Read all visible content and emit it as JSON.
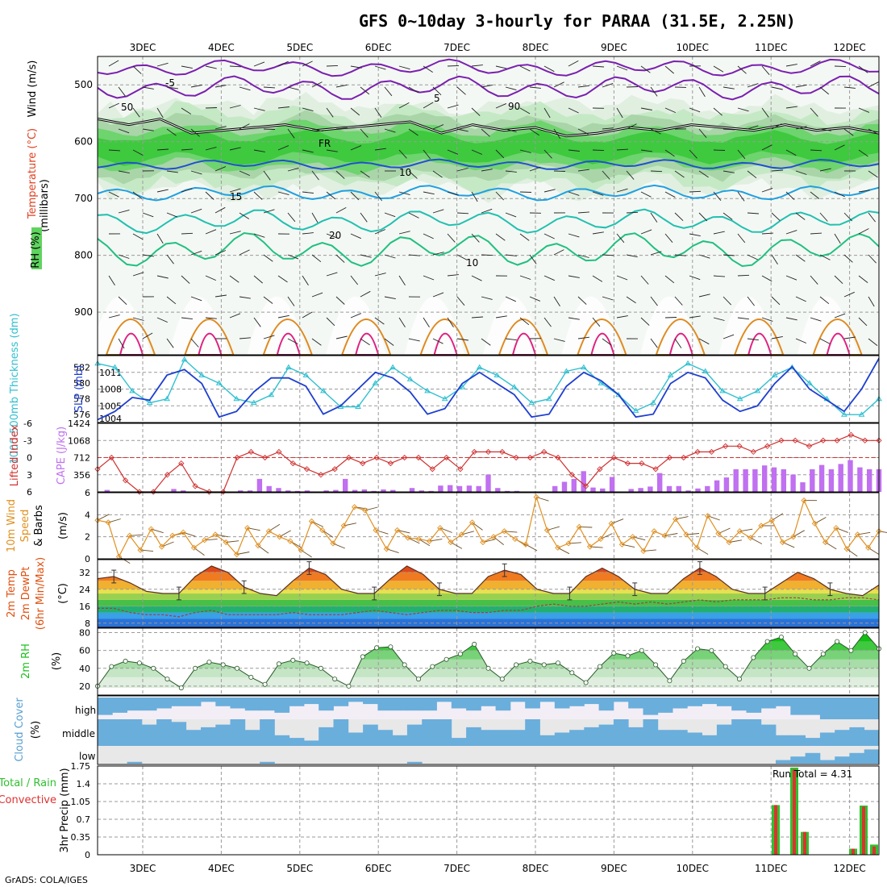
{
  "header": {
    "title": "GFS 0~10day 3-hourly for PARAA (31.5E, 2.25N)",
    "credit": "GrADS: COLA/IGES"
  },
  "colors": {
    "rh_dark": "#1ec21e",
    "rh_mid": "#5fd35f",
    "rh_light": "#bfe8bf",
    "temp_neg": "#7a1fb0",
    "temp_5": "#2050d0",
    "temp_10": "#20a0e0",
    "temp_15": "#20c0b0",
    "temp_20": "#20c080",
    "temp_warm": "#e08a20",
    "slp": "#1e3fd0",
    "thickness": "#30c0d0",
    "cape": "#c070f0",
    "lifted_index": "#d03030",
    "wind10": "#e09020",
    "temp2m": "#e05010",
    "rh2m": "#20c020",
    "cloud": "#6aaedc",
    "precip_total": "#30c030",
    "precip_conv": "#e03030"
  },
  "chart_data": [
    {
      "type": "heatmap",
      "panel": "upper-air",
      "title": "GFS 0~10day 3-hourly for PARAA (31.5E, 2.25N)",
      "xlabel": "",
      "ylabel": "(millibars)",
      "x_ticks": [
        "3DEC",
        "4DEC",
        "5DEC",
        "6DEC",
        "7DEC",
        "8DEC",
        "9DEC",
        "10DEC",
        "11DEC",
        "12DEC"
      ],
      "y_ticks": [
        500,
        600,
        700,
        800,
        900
      ],
      "ylim": [
        1000,
        450
      ],
      "legend": [
        "Wind (m/s)",
        "Temperature (°C)",
        "RH (%)"
      ],
      "contour_labels": [
        "-5",
        "FR",
        "5",
        "10",
        "15",
        "20",
        "10",
        "50",
        "90"
      ],
      "freezing_level_mb": [
        560,
        570,
        560,
        585,
        580,
        575,
        570,
        580,
        575,
        570,
        565,
        585,
        570,
        580,
        575,
        590,
        585,
        575,
        580,
        570,
        575,
        580,
        570,
        580,
        575,
        585
      ]
    },
    {
      "type": "line",
      "panel": "slp-thickness",
      "ylabel_left": "1000-500mb Thickness (dm)",
      "ylabel_right": "SLP (mb)",
      "left_ticks": [
        576,
        578,
        580,
        582
      ],
      "right_ticks": [
        1005,
        1008,
        1011
      ],
      "right_bottom_label": "1004",
      "series": [
        {
          "name": "SLP",
          "values": [
            1002.5,
            1004,
            1006.5,
            1006,
            1010.5,
            1011.5,
            1009,
            1003,
            1004,
            1007.5,
            1010,
            1010,
            1008.5,
            1003.5,
            1005,
            1008,
            1011,
            1010,
            1007.5,
            1003.5,
            1004.5,
            1009,
            1011,
            1009,
            1007,
            1003,
            1003.5,
            1008.5,
            1011,
            1009.5,
            1007,
            1003,
            1003.5,
            1009,
            1011,
            1010,
            1006,
            1004,
            1005,
            1009,
            1012,
            1008,
            1006,
            1004,
            1008,
            1013.5
          ]
        },
        {
          "name": "Thickness",
          "values": [
            582.5,
            582,
            579,
            577.5,
            578,
            583,
            581,
            580,
            578,
            577.5,
            578.5,
            582,
            581,
            579,
            577,
            577,
            580,
            582,
            580.5,
            579,
            578,
            579.5,
            582,
            581,
            579.5,
            577.5,
            578,
            581.5,
            582,
            580,
            578.5,
            576.5,
            577.5,
            581,
            582.5,
            581.5,
            579,
            578,
            579,
            581,
            582,
            580,
            578,
            576,
            576,
            578
          ]
        }
      ]
    },
    {
      "type": "bar",
      "panel": "cape-lifted-index",
      "ylabel_left": "Lifted Index",
      "ylabel_right": "CAPE (J/kg)",
      "left_ticks": [
        6,
        3,
        0,
        -3,
        -6
      ],
      "right_ticks": [
        356,
        712,
        1068,
        1424
      ],
      "series": [
        {
          "name": "CAPE",
          "values": [
            0,
            40,
            0,
            0,
            0,
            0,
            0,
            0,
            60,
            30,
            0,
            0,
            0,
            0,
            0,
            30,
            30,
            270,
            120,
            80,
            30,
            20,
            30,
            0,
            30,
            40,
            270,
            40,
            50,
            20,
            50,
            40,
            0,
            80,
            30,
            20,
            130,
            140,
            120,
            130,
            120,
            360,
            80,
            20,
            20,
            0,
            0,
            0,
            120,
            210,
            270,
            430,
            90,
            70,
            310,
            0,
            60,
            80,
            110,
            390,
            120,
            120,
            30,
            70,
            120,
            240,
            300,
            470,
            470,
            470,
            550,
            510,
            470,
            360,
            200,
            470,
            560,
            470,
            580,
            660,
            510,
            470,
            470
          ]
        },
        {
          "name": "Lifted Index",
          "values": [
            2,
            0,
            4,
            6,
            6,
            3,
            1,
            5,
            6,
            6,
            0,
            -1,
            0,
            -1,
            1,
            2,
            3,
            2,
            0,
            1,
            0,
            1,
            0,
            0,
            2,
            0,
            2,
            -1,
            -1,
            -1,
            0,
            0,
            -1,
            0,
            3,
            5,
            2,
            0,
            1,
            1,
            2,
            0,
            0,
            -1,
            -1,
            -2,
            -2,
            -1,
            -2,
            -3,
            -3,
            -2,
            -3,
            -3,
            -4,
            -3,
            -3
          ]
        }
      ]
    },
    {
      "type": "line",
      "panel": "wind10m",
      "ylabel": "10m Wind Speed & Barbs (m/s)",
      "y_ticks": [
        0,
        2,
        4,
        6
      ],
      "series": [
        {
          "name": "10m Wind Speed",
          "values": [
            3.5,
            3.3,
            0.2,
            2.1,
            0.8,
            2.7,
            1.1,
            2.1,
            2.4,
            1.0,
            1.7,
            2.2,
            1.5,
            0.4,
            2.8,
            1.2,
            2.5,
            2.0,
            1.6,
            0.8,
            3.4,
            2.6,
            1.4,
            3.0,
            4.7,
            4.4,
            2.6,
            0.9,
            2.6,
            1.9,
            1.8,
            1.6,
            2.8,
            1.5,
            2.2,
            3.3,
            1.5,
            2.0,
            2.5,
            1.8,
            1.3,
            5.6,
            2.6,
            1.0,
            1.4,
            2.9,
            1.1,
            1.8,
            3.2,
            1.3,
            2.0,
            0.7,
            2.5,
            2.1,
            3.6,
            2.2,
            1.0,
            3.9,
            2.3,
            1.5,
            2.5,
            1.9,
            3.0,
            3.5,
            1.5,
            2.0,
            5.3,
            3.2,
            1.5,
            2.8,
            0.9,
            2.2,
            1.0,
            2.5
          ]
        }
      ]
    },
    {
      "type": "area",
      "panel": "temp2m",
      "ylabel": "2m Temp 2m DewPt (6hr Min/Max) (°C)",
      "y_ticks": [
        8,
        16,
        24,
        32
      ],
      "series": [
        {
          "name": "2m Temp",
          "values": [
            29,
            30,
            27,
            23,
            22,
            22,
            30,
            35,
            32,
            25,
            22,
            21,
            28,
            34,
            31,
            24,
            22,
            22,
            29,
            35,
            31,
            24,
            22,
            22,
            30,
            33,
            31,
            24,
            22,
            22,
            30,
            34,
            30,
            24,
            22,
            22,
            29,
            34,
            30,
            24,
            22,
            22,
            27,
            32,
            29,
            24,
            22,
            21,
            26
          ]
        },
        {
          "name": "2m DewPt",
          "values": [
            15,
            15,
            13,
            12,
            12,
            11,
            13,
            14,
            12,
            12,
            12,
            12,
            13,
            12,
            12,
            12,
            13,
            14,
            13,
            12,
            13,
            14,
            14,
            13,
            13,
            14,
            14,
            16,
            17,
            16,
            16,
            17,
            18,
            17,
            18,
            17,
            18,
            19,
            18,
            19,
            19,
            19,
            20,
            20,
            19,
            19,
            20,
            20,
            19
          ]
        }
      ]
    },
    {
      "type": "area",
      "panel": "rh2m",
      "ylabel": "2m RH (%)",
      "y_ticks": [
        20,
        40,
        60,
        80
      ],
      "series": [
        {
          "name": "2m RH",
          "values": [
            20,
            42,
            48,
            46,
            40,
            28,
            18,
            40,
            47,
            44,
            40,
            30,
            22,
            45,
            49,
            46,
            40,
            28,
            20,
            53,
            63,
            64,
            44,
            28,
            42,
            50,
            56,
            67,
            40,
            28,
            44,
            48,
            44,
            46,
            35,
            24,
            42,
            57,
            54,
            60,
            44,
            26,
            48,
            62,
            60,
            42,
            28,
            52,
            70,
            75,
            56,
            40,
            56,
            70,
            60,
            80,
            62
          ]
        }
      ]
    },
    {
      "type": "heatmap",
      "panel": "cloud-cover",
      "ylabel": "Cloud Cover (%)",
      "y_ticks": [
        "low",
        "middle",
        "high"
      ],
      "series": [
        {
          "name": "high",
          "values": [
            80,
            70,
            60,
            60,
            50,
            40,
            40,
            20,
            40,
            50,
            60,
            60,
            70,
            40,
            30,
            60,
            40,
            20,
            30,
            60,
            60,
            60,
            60,
            20,
            50,
            60,
            40,
            60,
            20,
            50,
            20,
            50,
            40,
            30,
            60,
            20,
            50,
            80,
            70,
            50,
            40,
            30,
            40,
            60,
            70,
            50,
            40,
            80,
            80,
            100,
            100,
            100,
            100
          ]
        },
        {
          "name": "middle",
          "values": [
            100,
            100,
            100,
            80,
            100,
            90,
            60,
            70,
            80,
            100,
            60,
            100,
            40,
            30,
            20,
            70,
            100,
            50,
            80,
            60,
            40,
            80,
            100,
            100,
            30,
            70,
            60,
            60,
            60,
            100,
            40,
            50,
            60,
            70,
            80,
            100,
            70,
            100,
            60,
            60,
            50,
            40,
            80,
            100,
            100,
            80,
            40,
            40,
            30,
            50,
            60,
            70,
            60
          ]
        },
        {
          "name": "low",
          "values": [
            0,
            0,
            10,
            0,
            0,
            0,
            0,
            0,
            0,
            0,
            0,
            10,
            0,
            0,
            0,
            0,
            0,
            0,
            0,
            0,
            0,
            10,
            0,
            0,
            0,
            0,
            0,
            0,
            0,
            0,
            0,
            0,
            0,
            0,
            0,
            0,
            0,
            0,
            0,
            0,
            0,
            0,
            0,
            0,
            0,
            0,
            20,
            40,
            60,
            20,
            40,
            60,
            80
          ]
        }
      ]
    },
    {
      "type": "bar",
      "panel": "precip",
      "ylabel": "3hr Precip (mm)",
      "legend": [
        "Total / Rain",
        "Convective"
      ],
      "y_ticks": [
        0,
        0.35,
        0.7,
        1.05,
        1.4,
        1.75
      ],
      "annotation": "Run Total = 4.31",
      "categories": [
        "11DEC 00Z",
        "11DEC 09Z",
        "11DEC 12Z",
        "12DEC 00Z",
        "12DEC 03Z",
        "12DEC 06Z"
      ],
      "series": [
        {
          "name": "Total / Rain",
          "values": [
            0.98,
            1.72,
            0.45,
            0.12,
            0.97,
            0.2
          ]
        },
        {
          "name": "Convective",
          "values": [
            0.98,
            1.68,
            0.45,
            0.12,
            0.95,
            0.16
          ]
        }
      ]
    }
  ]
}
